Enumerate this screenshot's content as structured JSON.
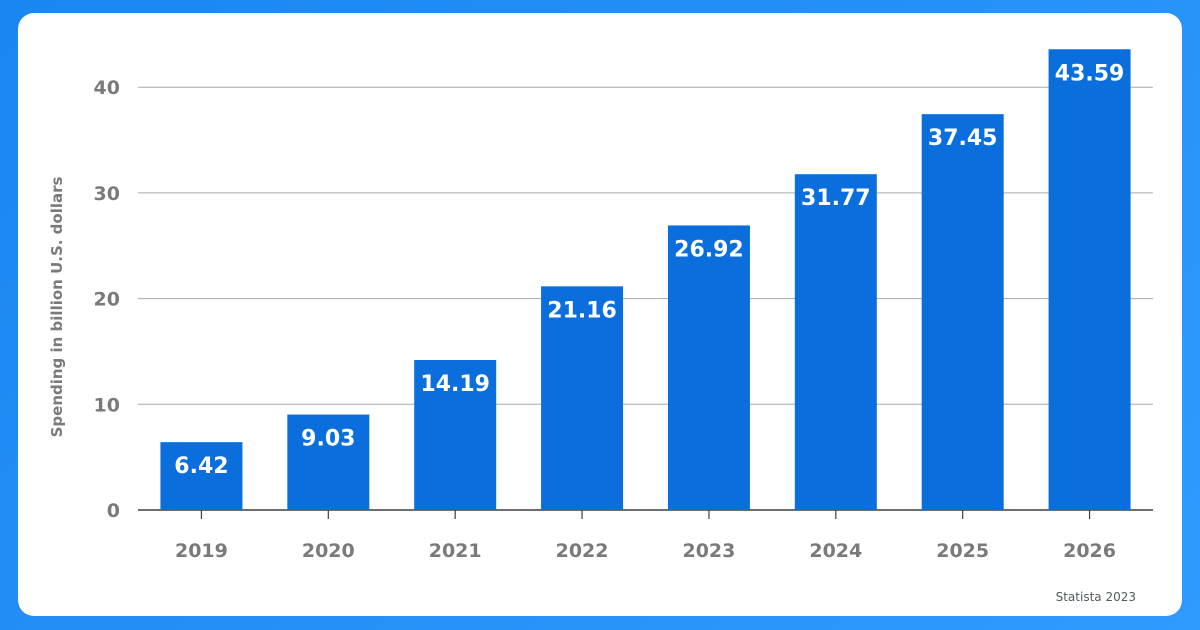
{
  "chart_data": {
    "type": "bar",
    "categories": [
      "2019",
      "2020",
      "2021",
      "2022",
      "2023",
      "2024",
      "2025",
      "2026"
    ],
    "values": [
      6.42,
      9.03,
      14.19,
      21.16,
      26.92,
      31.77,
      37.45,
      43.59
    ],
    "data_labels": [
      "6.42",
      "9.03",
      "14.19",
      "21.16",
      "26.92",
      "31.77",
      "37.45",
      "43.59"
    ],
    "title": "",
    "xlabel": "",
    "ylabel": "Spending in billion U.S. dollars",
    "ylim": [
      0,
      42.2
    ],
    "yticks": [
      0,
      10,
      20,
      30,
      40
    ],
    "ytick_labels": [
      "0",
      "10",
      "20",
      "30",
      "40"
    ],
    "grid": true,
    "legend": "none",
    "bar_color": "#0a6fdc",
    "label_color": "#ffffff",
    "tick_color": "#7a7a7a",
    "grid_color": "#a6a9ad"
  },
  "source": "Statista 2023"
}
